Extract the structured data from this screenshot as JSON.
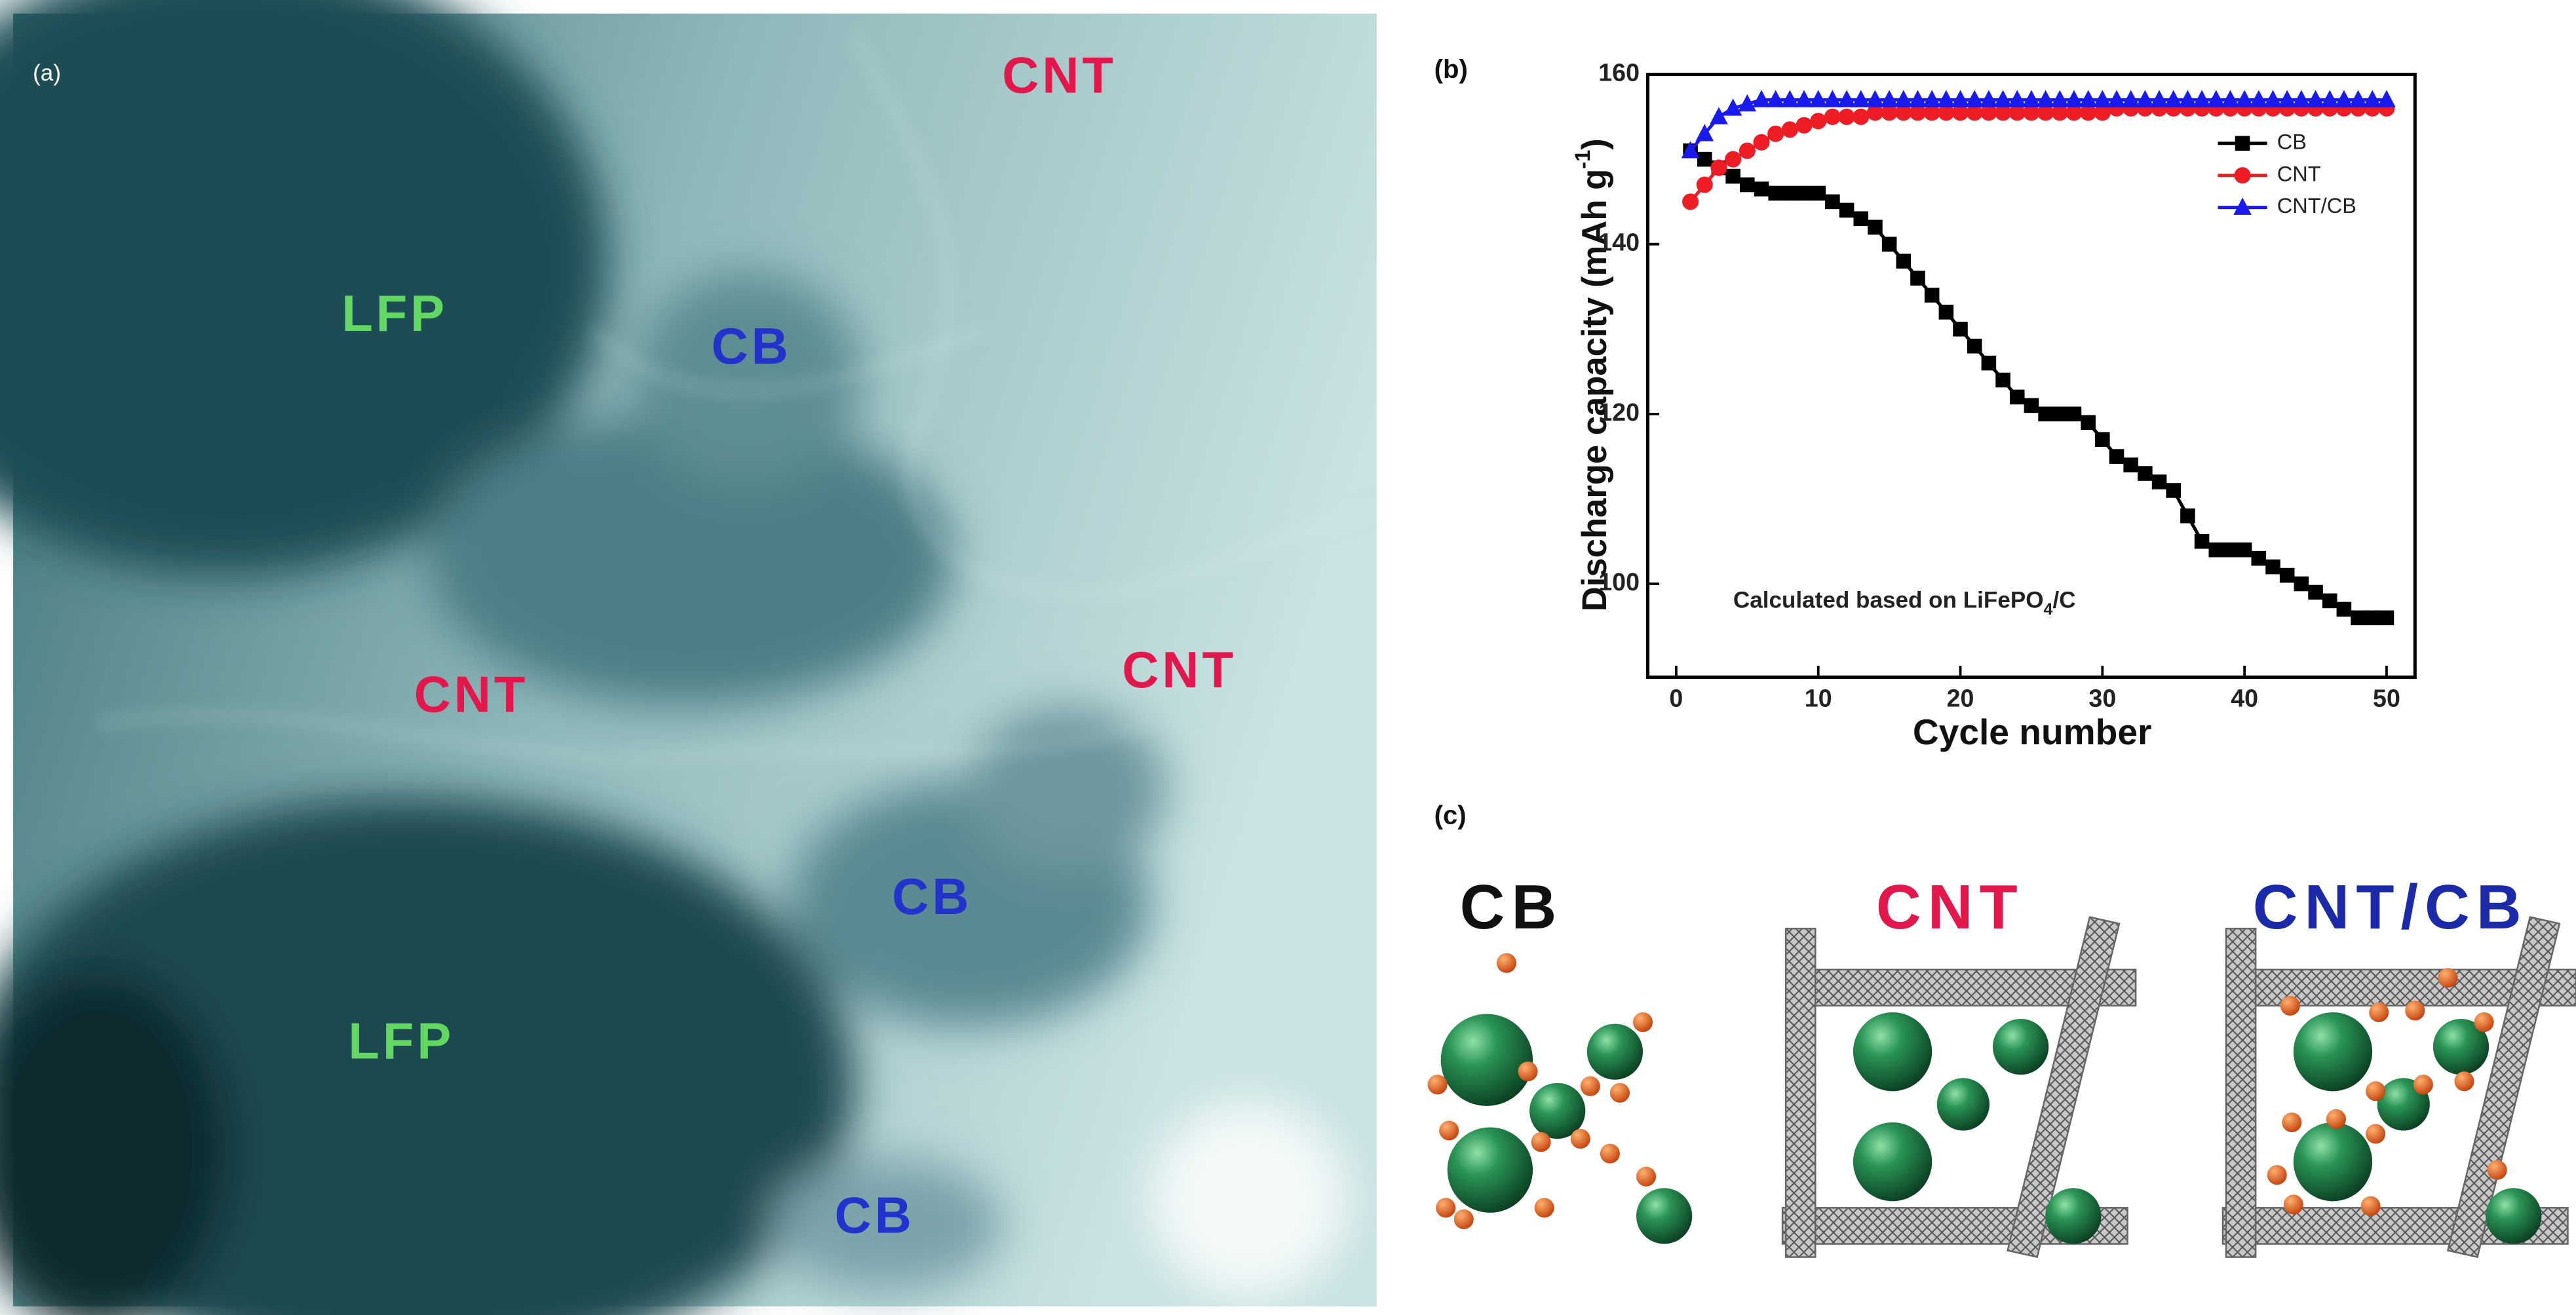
{
  "panel_a": {
    "label": "(a)",
    "annotations": [
      {
        "text": "CNT",
        "color": "#e2184c"
      },
      {
        "text": "LFP",
        "color": "#62d862"
      },
      {
        "text": "CB",
        "color": "#2233cc"
      },
      {
        "text": "CNT",
        "color": "#e2184c"
      },
      {
        "text": "CNT",
        "color": "#e2184c"
      },
      {
        "text": "CB",
        "color": "#2233cc"
      },
      {
        "text": "LFP",
        "color": "#62d862"
      },
      {
        "text": "CB",
        "color": "#2233cc"
      }
    ]
  },
  "chart_data": {
    "type": "line",
    "label": "(b)",
    "xlabel": "Cycle number",
    "ylabel": {
      "text": "Discharge capacity (mAh g",
      "sup": "-1",
      "end": ")"
    },
    "annotation": {
      "text": "Calculated based on LiFePO",
      "sub": "4",
      "end": "/C"
    },
    "x": [
      1,
      2,
      3,
      4,
      5,
      6,
      7,
      8,
      9,
      10,
      11,
      12,
      13,
      14,
      15,
      16,
      17,
      18,
      19,
      20,
      21,
      22,
      23,
      24,
      25,
      26,
      27,
      28,
      29,
      30,
      31,
      32,
      33,
      34,
      35,
      36,
      37,
      38,
      39,
      40,
      41,
      42,
      43,
      44,
      45,
      46,
      47,
      48,
      49,
      50
    ],
    "series": [
      {
        "name": "CB",
        "color": "#000000",
        "marker": "square",
        "values": [
          151,
          150,
          149,
          148,
          147,
          146.5,
          146,
          146,
          146,
          146,
          145,
          144,
          143,
          142,
          140,
          138,
          136,
          134,
          132,
          130,
          128,
          126,
          124,
          122,
          121,
          120,
          120,
          120,
          119,
          117,
          115,
          114,
          113,
          112,
          111,
          108,
          105,
          104,
          104,
          104,
          103,
          102,
          101,
          100,
          99,
          98,
          97,
          96,
          96,
          96
        ]
      },
      {
        "name": "CNT",
        "color": "#ee1c24",
        "marker": "circle",
        "values": [
          145,
          147,
          149,
          150,
          151,
          152,
          153,
          153.5,
          154,
          154.5,
          155,
          155,
          155,
          155.5,
          155.5,
          155.5,
          155.5,
          155.5,
          155.5,
          155.5,
          155.5,
          155.5,
          155.5,
          155.5,
          155.5,
          155.5,
          155.5,
          155.5,
          155.5,
          155.5,
          156,
          156,
          156,
          156,
          156,
          156,
          156,
          156,
          156,
          156,
          156,
          156,
          156,
          156,
          156,
          156,
          156,
          156,
          156,
          156
        ]
      },
      {
        "name": "CNT/CB",
        "color": "#1a1aee",
        "marker": "triangle",
        "values": [
          151,
          153,
          155,
          156,
          156.5,
          157,
          157,
          157,
          157,
          157,
          157,
          157,
          157,
          157,
          157,
          157,
          157,
          157,
          157,
          157,
          157,
          157,
          157,
          157,
          157,
          157,
          157,
          157,
          157,
          157,
          157,
          157,
          157,
          157,
          157,
          157,
          157,
          157,
          157,
          157,
          157,
          157,
          157,
          157,
          157,
          157,
          157,
          157,
          157,
          157
        ]
      }
    ],
    "xlim": [
      -2,
      52
    ],
    "xticks": [
      0,
      10,
      20,
      30,
      40,
      50
    ],
    "ylim": [
      89,
      160
    ],
    "yticks": [
      100,
      120,
      140,
      160
    ],
    "legend": "upper right"
  },
  "panel_c": {
    "label": "(c)",
    "titles": [
      {
        "text": "CB",
        "color": "#111111"
      },
      {
        "text": "CNT",
        "color": "#e2184c"
      },
      {
        "text": "CNT/CB",
        "color": "#1a2aa8"
      }
    ]
  }
}
